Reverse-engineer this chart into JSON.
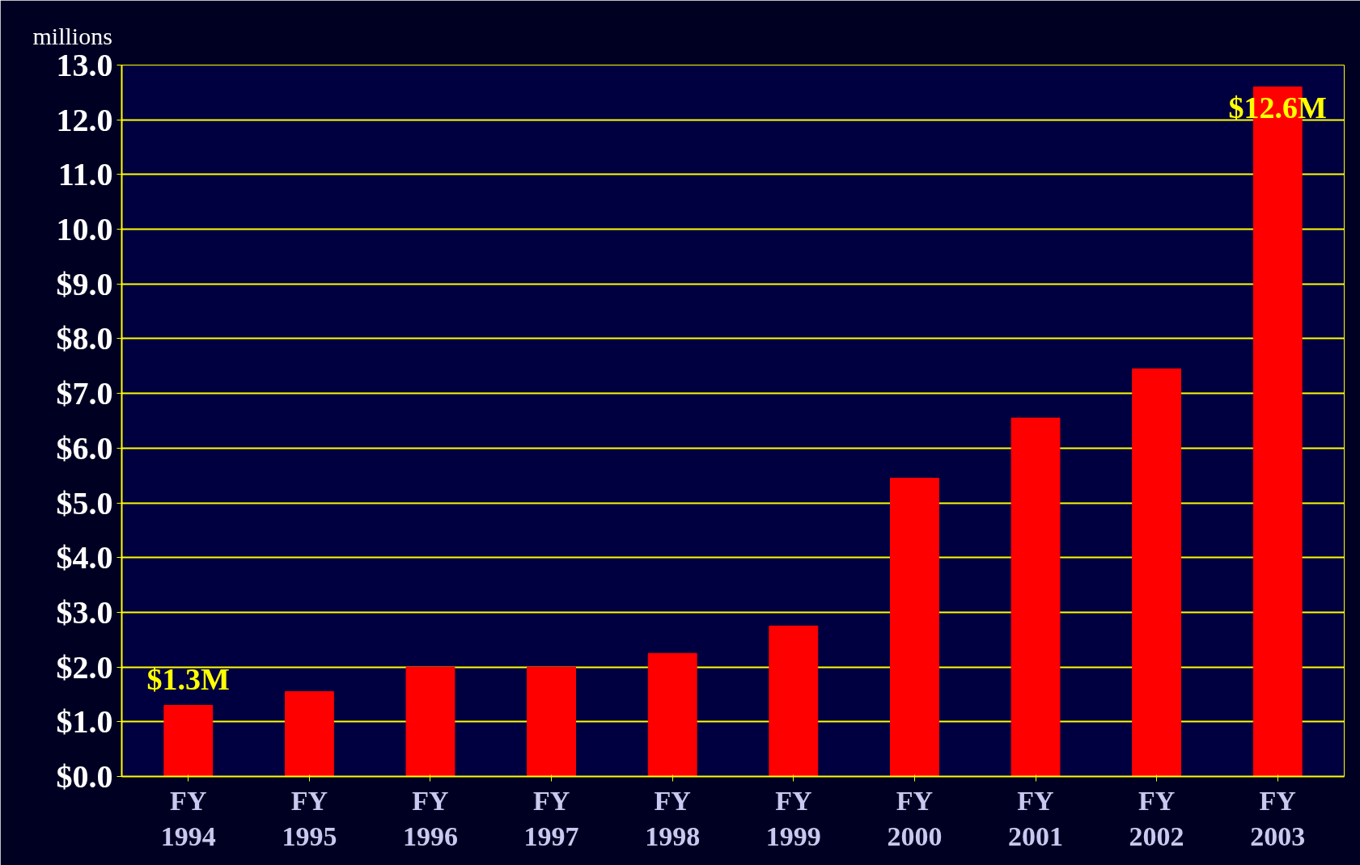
{
  "chart_data": {
    "type": "bar",
    "ylabel": "millions",
    "categories": [
      "FY 1994",
      "FY 1995",
      "FY 1996",
      "FY 1997",
      "FY 1998",
      "FY 1999",
      "FY 2000",
      "FY 2001",
      "FY 2002",
      "FY 2003"
    ],
    "values": [
      1.3,
      1.55,
      2.0,
      2.0,
      2.25,
      2.75,
      5.45,
      6.55,
      7.45,
      12.6
    ],
    "value_labels": [
      "$1.3M",
      null,
      null,
      null,
      null,
      null,
      null,
      null,
      null,
      "$12.6M"
    ],
    "color": "#ff0000",
    "ylim": [
      0,
      13
    ],
    "yticks": [
      {
        "value": 0,
        "label": "$0.0"
      },
      {
        "value": 1,
        "label": "$1.0"
      },
      {
        "value": 2,
        "label": "$2.0"
      },
      {
        "value": 3,
        "label": "$3.0"
      },
      {
        "value": 4,
        "label": "$4.0"
      },
      {
        "value": 5,
        "label": "$5.0"
      },
      {
        "value": 6,
        "label": "$6.0"
      },
      {
        "value": 7,
        "label": "$7.0"
      },
      {
        "value": 8,
        "label": "$8.0"
      },
      {
        "value": 9,
        "label": "$9.0"
      },
      {
        "value": 10,
        "label": "10.0"
      },
      {
        "value": 11,
        "label": "11.0"
      },
      {
        "value": 12,
        "label": "12.0"
      },
      {
        "value": 13,
        "label": "13.0"
      }
    ],
    "grid": "y"
  }
}
